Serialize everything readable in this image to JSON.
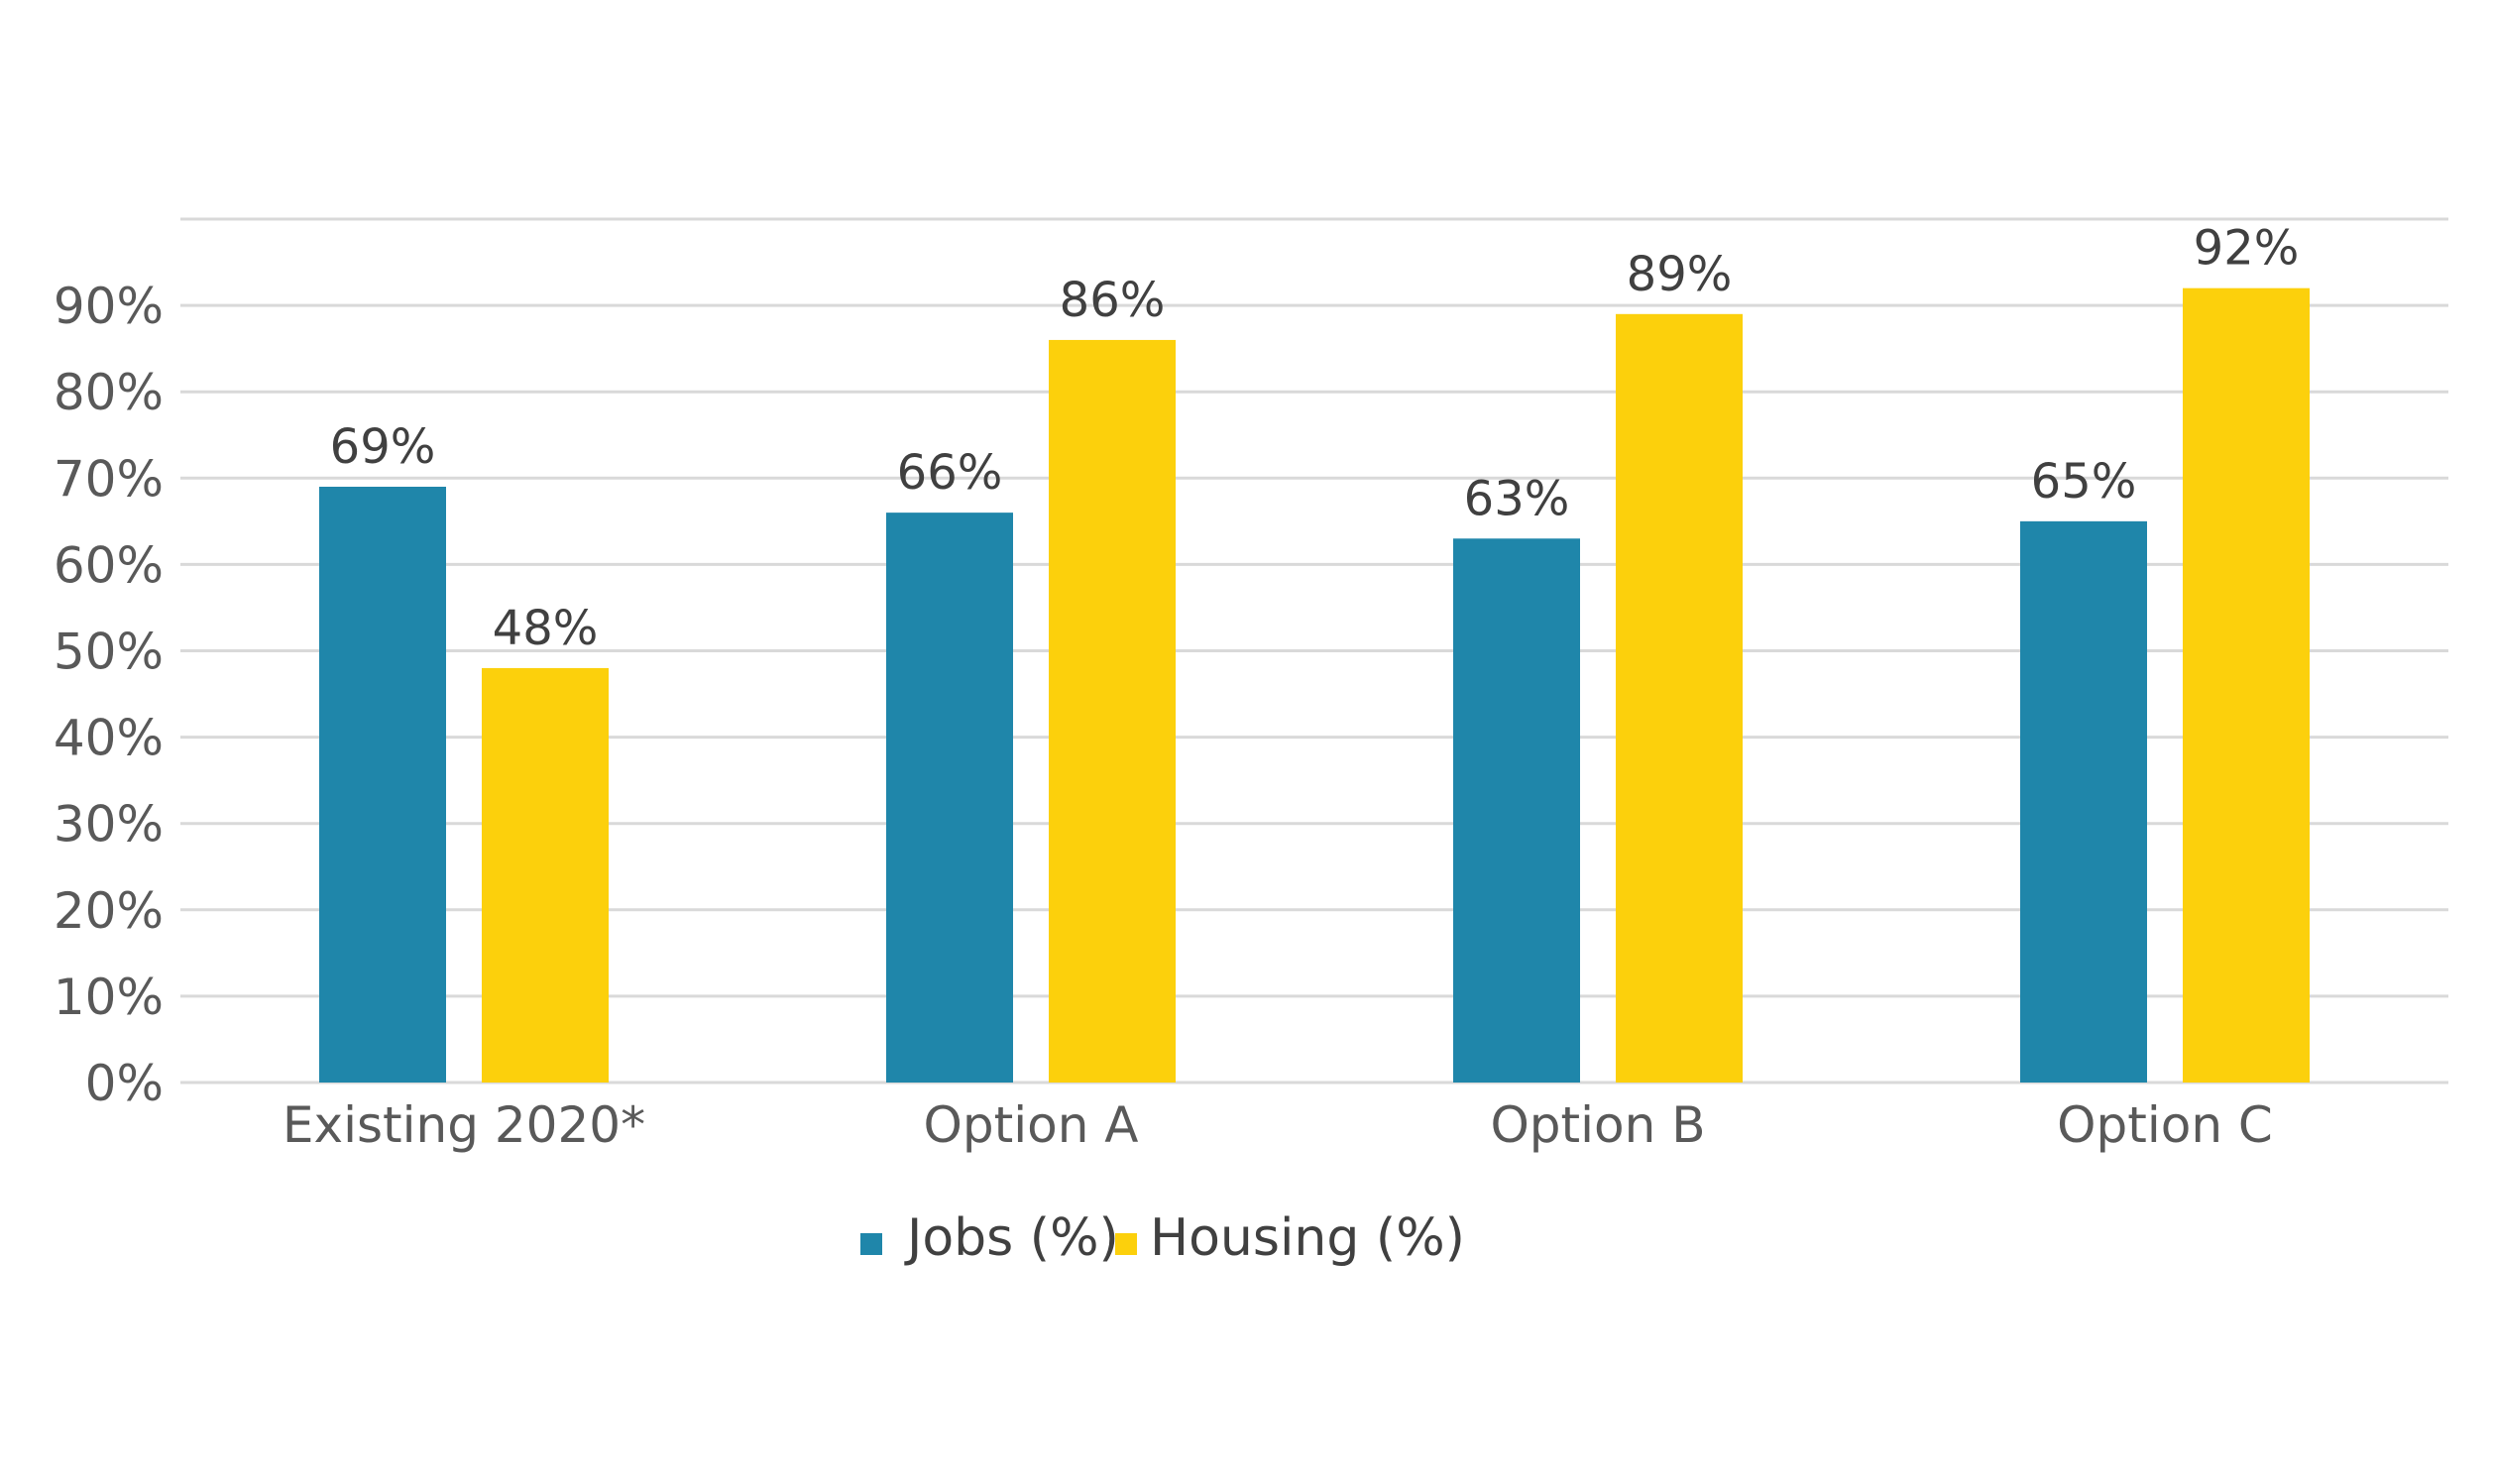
{
  "chart_data": {
    "type": "bar",
    "categories": [
      "Existing 2020*",
      "Option A",
      "Option B",
      "Option C"
    ],
    "series": [
      {
        "name": "Jobs (%)",
        "color": "#1f86aa",
        "values": [
          69,
          66,
          63,
          65
        ],
        "labels": [
          "69%",
          "66%",
          "63%",
          "65%"
        ]
      },
      {
        "name": "Housing (%)",
        "color": "#fcd00c",
        "values": [
          48,
          86,
          89,
          92
        ],
        "labels": [
          "48%",
          "86%",
          "89%",
          "92%"
        ]
      }
    ],
    "ylim": [
      0,
      100
    ],
    "yticks": [
      0,
      10,
      20,
      30,
      40,
      50,
      60,
      70,
      80,
      90
    ],
    "ytick_labels": [
      "0%",
      "10%",
      "20%",
      "30%",
      "40%",
      "50%",
      "60%",
      "70%",
      "80%",
      "90%"
    ],
    "grid": true,
    "legend_position": "bottom"
  }
}
